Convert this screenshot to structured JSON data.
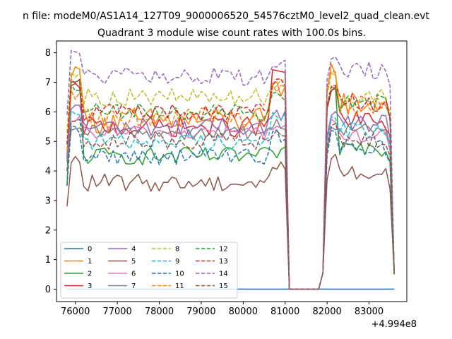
{
  "suptitle": "n file: modeM0/AS1A14_127T09_9000006520_54576cztM0_level2_quad_clean.evt",
  "chart_data": {
    "type": "line",
    "title": "Quadrant 3 module wise count rates with 100.0s bins.",
    "xlabel": "",
    "ylabel": "",
    "x_offset_label": "+4.994e8",
    "xlim": [
      75550,
      83900
    ],
    "ylim": [
      -0.42,
      8.4
    ],
    "x_ticks": [
      76000,
      77000,
      78000,
      79000,
      80000,
      81000,
      82000,
      83000
    ],
    "x_tick_labels": [
      "76000",
      "77000",
      "78000",
      "79000",
      "80000",
      "81000",
      "82000",
      "83000"
    ],
    "y_ticks": [
      0,
      1,
      2,
      3,
      4,
      5,
      6,
      7,
      8
    ],
    "y_tick_labels": [
      "0",
      "1",
      "2",
      "3",
      "4",
      "5",
      "6",
      "7",
      "8"
    ],
    "grid": false,
    "legend": {
      "location": "lower-left",
      "columns": 4
    },
    "segment1": {
      "start": 75800,
      "end": 81000,
      "step": 100
    },
    "gap": [
      [
        81100,
        0.0
      ],
      [
        81200,
        0.0
      ],
      [
        81300,
        0.0
      ],
      [
        81400,
        0.0
      ],
      [
        81500,
        0.0
      ],
      [
        81600,
        0.0
      ],
      [
        81700,
        0.0
      ],
      [
        81800,
        0.0
      ]
    ],
    "segment2": {
      "start": 81900,
      "end": 83600,
      "step": 100
    },
    "series": [
      {
        "name": "0",
        "color": "#1f77b4",
        "dash": "solid",
        "level1": 0.0,
        "level2": 0.0,
        "amp": 0.0,
        "rise": 0.0,
        "peak": 0.0,
        "edge": 0.0,
        "ramp": 0.0
      },
      {
        "name": "1",
        "color": "#ff7f0e",
        "dash": "solid",
        "level1": 5.7,
        "level2": 6.3,
        "amp": 0.45,
        "rise": 1.2,
        "peak": 7.3,
        "edge": 6.8,
        "ramp": 7.5
      },
      {
        "name": "2",
        "color": "#2ca02c",
        "dash": "solid",
        "level1": 4.5,
        "level2": 4.8,
        "amp": 0.3,
        "rise": 1.0,
        "peak": 7.1,
        "edge": 4.6,
        "ramp": 6.9
      },
      {
        "name": "3",
        "color": "#d62728",
        "dash": "solid",
        "level1": 5.5,
        "level2": 5.7,
        "amp": 0.35,
        "rise": 1.1,
        "peak": 7.0,
        "edge": 7.4,
        "ramp": 6.9
      },
      {
        "name": "4",
        "color": "#9467bd",
        "dash": "solid",
        "level1": 5.5,
        "level2": 5.6,
        "amp": 0.3,
        "rise": 1.0,
        "peak": 6.2,
        "edge": 5.9,
        "ramp": 6.0
      },
      {
        "name": "5",
        "color": "#8c564b",
        "dash": "solid",
        "level1": 3.6,
        "level2": 3.9,
        "amp": 0.3,
        "rise": 0.8,
        "peak": 4.4,
        "edge": 4.2,
        "ramp": 4.5
      },
      {
        "name": "6",
        "color": "#e377c2",
        "dash": "solid",
        "level1": 5.3,
        "level2": 5.2,
        "amp": 0.25,
        "rise": 1.0,
        "peak": 5.8,
        "edge": 5.5,
        "ramp": 5.8
      },
      {
        "name": "7",
        "color": "#7f7f7f",
        "dash": "solid",
        "level1": 5.3,
        "level2": 5.4,
        "amp": 0.25,
        "rise": 1.0,
        "peak": 5.5,
        "edge": 5.6,
        "ramp": 5.5
      },
      {
        "name": "8",
        "color": "#bcbd22",
        "dash": "dashed",
        "level1": 6.5,
        "level2": 6.5,
        "amp": 0.3,
        "rise": 1.2,
        "peak": 7.2,
        "edge": 7.0,
        "ramp": 7.3
      },
      {
        "name": "9",
        "color": "#17becf",
        "dash": "dashed",
        "level1": 5.0,
        "level2": 5.4,
        "amp": 0.3,
        "rise": 1.0,
        "peak": 5.9,
        "edge": 5.8,
        "ramp": 5.8
      },
      {
        "name": "10",
        "color": "#1f77b4",
        "dash": "dashed",
        "level1": 4.5,
        "level2": 4.8,
        "amp": 0.3,
        "rise": 1.0,
        "peak": 5.4,
        "edge": 5.2,
        "ramp": 5.3
      },
      {
        "name": "11",
        "color": "#ff7f0e",
        "dash": "dashed",
        "level1": 5.8,
        "level2": 6.2,
        "amp": 0.35,
        "rise": 1.1,
        "peak": 6.6,
        "edge": 6.8,
        "ramp": 7.6
      },
      {
        "name": "12",
        "color": "#2ca02c",
        "dash": "dashed",
        "level1": 6.0,
        "level2": 6.3,
        "amp": 0.3,
        "rise": 1.1,
        "peak": 6.8,
        "edge": 6.6,
        "ramp": 7.0
      },
      {
        "name": "13",
        "color": "#d62728",
        "dash": "dashed",
        "level1": 6.0,
        "level2": 6.3,
        "amp": 0.3,
        "rise": 1.1,
        "peak": 7.0,
        "edge": 6.9,
        "ramp": 7.0
      },
      {
        "name": "14",
        "color": "#9467bd",
        "dash": "dashed",
        "level1": 7.2,
        "level2": 7.4,
        "amp": 0.3,
        "rise": 1.3,
        "peak": 8.0,
        "edge": 7.6,
        "ramp": 7.9
      },
      {
        "name": "15",
        "color": "#8c564b",
        "dash": "dashed",
        "level1": 5.0,
        "level2": 5.0,
        "amp": 0.3,
        "rise": 1.0,
        "peak": 5.6,
        "edge": 5.3,
        "ramp": 5.6
      }
    ]
  }
}
